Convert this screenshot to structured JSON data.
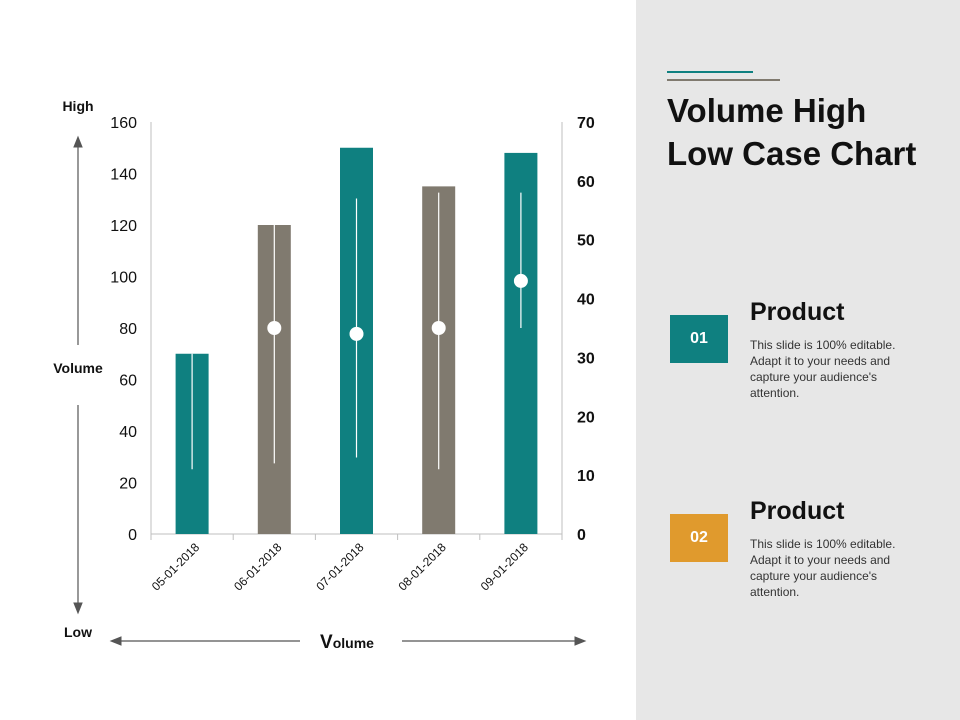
{
  "title": "Volume High Low Case Chart",
  "axis_arrows": {
    "high_label": "High",
    "volume_label": "Volume",
    "low_label": "Low",
    "x_label_initial": "V",
    "x_label_rest": "olume"
  },
  "products": [
    {
      "badge": "01",
      "title": "Product",
      "desc": "This slide is 100% editable. Adapt it to your needs and capture your audience's attention.",
      "color": "#0f8080"
    },
    {
      "badge": "02",
      "title": "Product",
      "desc": "This slide is 100% editable. Adapt it to your needs and capture your audience's attention.",
      "color": "#e09a2d"
    }
  ],
  "chart_data": {
    "type": "bar",
    "categories": [
      "05-01-2018",
      "06-01-2018",
      "07-01-2018",
      "08-01-2018",
      "09-01-2018"
    ],
    "volume": [
      70,
      120,
      150,
      135,
      148
    ],
    "high": [
      null,
      53,
      57,
      58,
      58
    ],
    "low": [
      11,
      12,
      13,
      11,
      35
    ],
    "close": [
      null,
      35,
      34,
      35,
      43
    ],
    "bar_colors": [
      "#0f8080",
      "#807a6f",
      "#0f8080",
      "#807a6f",
      "#0f8080"
    ],
    "y_left_ticks": [
      "0",
      "20",
      "40",
      "60",
      "80",
      "100",
      "120",
      "140",
      "160"
    ],
    "y_right_ticks": [
      "0",
      "10",
      "20",
      "30",
      "40",
      "50",
      "60",
      "70"
    ],
    "ylim_left": [
      0,
      160
    ],
    "ylim_right": [
      0,
      70
    ],
    "grid": false,
    "legend": "none"
  }
}
